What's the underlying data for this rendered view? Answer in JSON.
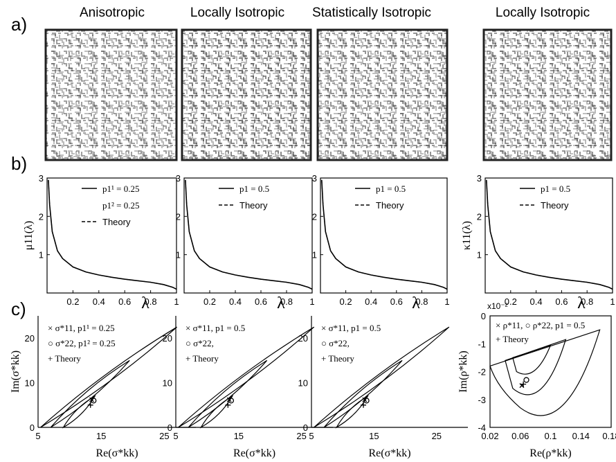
{
  "row_labels": [
    "a)",
    "b)",
    "c)"
  ],
  "column_titles": [
    "Anisotropic",
    "Locally Isotropic",
    "Statistically Isotropic",
    "Locally Isotropic"
  ],
  "panel_b": {
    "xlabel": "λ",
    "ylabels": [
      "μ11(λ)",
      "",
      "",
      "κ11(λ)"
    ],
    "legends": [
      [
        "p1¹ = 0.25",
        "p1² = 0.25",
        "Theory"
      ],
      [
        "p1 = 0.5",
        "Theory"
      ],
      [
        "p1 = 0.5",
        "Theory"
      ],
      [
        "p1 = 0.5",
        "Theory"
      ]
    ]
  },
  "panel_c": {
    "xlabels": [
      "Re(σ*kk)",
      "Re(σ*kk)",
      "Re(σ*kk)",
      "Re(ρ*kk)"
    ],
    "ylabels": [
      "Im(σ*kk)",
      "",
      "",
      "Im(ρ*kk)"
    ],
    "legends": [
      [
        "× σ*11, p1¹ = 0.25",
        "○ σ*22, p1² = 0.25",
        "+ Theory"
      ],
      [
        "× σ*11, p1 = 0.5",
        "○ σ*22,",
        "+ Theory"
      ],
      [
        "× σ*11, p1 = 0.5",
        "○ σ*22,",
        "+ Theory"
      ],
      [
        "× ρ*11, ○ ρ*22, p1 = 0.5",
        "+ Theory"
      ]
    ],
    "exponent_label": "x10⁻²"
  },
  "chart_data": [
    {
      "type": "line",
      "panel": "b",
      "xlim": [
        0,
        1
      ],
      "ylim": [
        0,
        3
      ],
      "xticks": [
        0.2,
        0.4,
        0.6,
        0.8,
        1
      ],
      "yticks": [
        1,
        2,
        3
      ],
      "series": [
        {
          "name": "p1 = 0.5",
          "x": [
            0.01,
            0.02,
            0.04,
            0.08,
            0.12,
            0.2,
            0.3,
            0.4,
            0.5,
            0.6,
            0.7,
            0.8,
            0.9,
            0.97,
            1.0
          ],
          "y": [
            2.95,
            2.3,
            1.6,
            1.1,
            0.9,
            0.68,
            0.55,
            0.47,
            0.41,
            0.36,
            0.32,
            0.28,
            0.22,
            0.15,
            0.1
          ]
        },
        {
          "name": "Theory",
          "x": [
            0.01,
            0.02,
            0.04,
            0.08,
            0.12,
            0.2,
            0.3,
            0.4,
            0.5,
            0.6,
            0.7,
            0.8,
            0.9,
            0.97,
            1.0
          ],
          "y": [
            2.95,
            2.3,
            1.6,
            1.1,
            0.9,
            0.68,
            0.55,
            0.47,
            0.41,
            0.36,
            0.32,
            0.28,
            0.22,
            0.15,
            0.1
          ]
        }
      ]
    },
    {
      "type": "scatter",
      "panel": "c",
      "xlim": [
        5,
        30
      ],
      "ylim": [
        0,
        25
      ],
      "xticks": [
        5,
        15,
        25
      ],
      "yticks": [
        0,
        10,
        20
      ],
      "bound_outer": [
        [
          5.4,
          0
        ],
        [
          27,
          22.5
        ]
      ],
      "bound_middle": [
        [
          7,
          0
        ],
        [
          19.5,
          15
        ]
      ],
      "bound_inner": [
        [
          9,
          0
        ],
        [
          14,
          7
        ]
      ],
      "points": [
        {
          "name": "σ*11",
          "marker": "x",
          "x": 13.5,
          "y": 6.2
        },
        {
          "name": "σ*22",
          "marker": "o",
          "x": 13.8,
          "y": 6.0
        },
        {
          "name": "Theory",
          "marker": "+",
          "x": 13.3,
          "y": 5.0
        }
      ]
    },
    {
      "type": "scatter",
      "panel": "c-rho",
      "xlim": [
        0.02,
        0.18
      ],
      "ylim": [
        -4,
        0
      ],
      "xticks": [
        0.02,
        0.06,
        0.1,
        0.14,
        0.18
      ],
      "yticks": [
        0,
        -1,
        -2,
        -3,
        -4
      ],
      "points": [
        {
          "name": "ρ*11",
          "marker": "x",
          "x": 0.062,
          "y": -2.5
        },
        {
          "name": "ρ*22",
          "marker": "o",
          "x": 0.068,
          "y": -2.3
        },
        {
          "name": "Theory",
          "marker": "+",
          "x": 0.064,
          "y": -2.45
        }
      ]
    }
  ]
}
